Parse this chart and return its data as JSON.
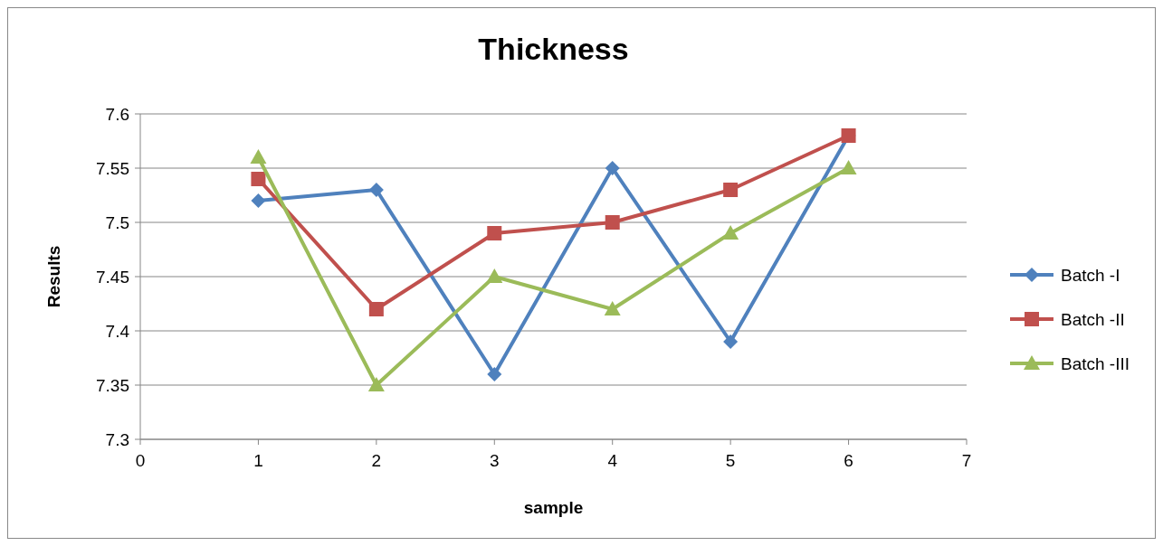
{
  "chart_data": {
    "type": "line",
    "title": "Thickness",
    "xlabel": "sample",
    "ylabel": "Results",
    "x": [
      1,
      2,
      3,
      4,
      5,
      6
    ],
    "series": [
      {
        "name": "Batch -I",
        "color": "#4f81bd",
        "marker": "diamond",
        "values": [
          7.52,
          7.53,
          7.36,
          7.55,
          7.39,
          7.58
        ]
      },
      {
        "name": "Batch -II",
        "color": "#c0504d",
        "marker": "square",
        "values": [
          7.54,
          7.42,
          7.49,
          7.5,
          7.53,
          7.58
        ]
      },
      {
        "name": "Batch -III",
        "color": "#9bbb59",
        "marker": "triangle",
        "values": [
          7.56,
          7.35,
          7.45,
          7.42,
          7.49,
          7.55
        ]
      }
    ],
    "xlim": [
      0,
      7
    ],
    "xticks": [
      0,
      1,
      2,
      3,
      4,
      5,
      6,
      7
    ],
    "ylim": [
      7.3,
      7.6
    ],
    "yticks": [
      7.3,
      7.35,
      7.4,
      7.45,
      7.5,
      7.55,
      7.6
    ],
    "grid": "y",
    "legend": "right",
    "line_style": "solid"
  }
}
